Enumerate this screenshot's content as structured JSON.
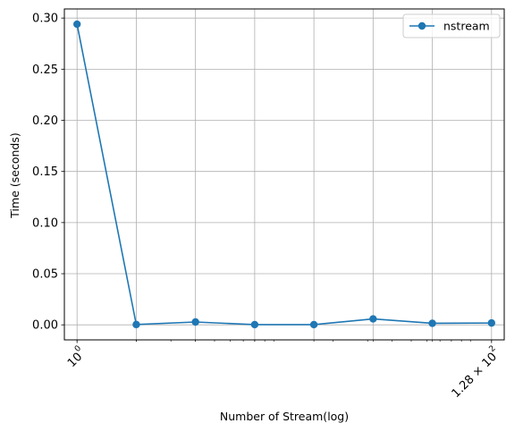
{
  "chart_data": {
    "type": "line",
    "xscale": "log2",
    "x": [
      1,
      2,
      4,
      8,
      16,
      32,
      64,
      128
    ],
    "series": [
      {
        "name": "nstream",
        "color": "#1f77b4",
        "marker": "circle",
        "values": [
          0.294,
          0.0003,
          0.0028,
          0.0002,
          0.0002,
          0.0058,
          0.0015,
          0.0018
        ]
      }
    ],
    "xlabel": "Number of Stream(log)",
    "ylabel": "Time (seconds)",
    "xticks": [
      {
        "value": 1,
        "base": "10",
        "exp": "0",
        "prefix": ""
      },
      {
        "value": 128,
        "base": "10",
        "exp": "2",
        "prefix": "1.28 × "
      }
    ],
    "yticks": [
      "0.00",
      "0.05",
      "0.10",
      "0.15",
      "0.20",
      "0.25",
      "0.30"
    ],
    "ylim": [
      -0.0147,
      0.3089
    ],
    "xlim": [
      0.862,
      148.5
    ],
    "grid": true,
    "legend_position": "top-right"
  }
}
